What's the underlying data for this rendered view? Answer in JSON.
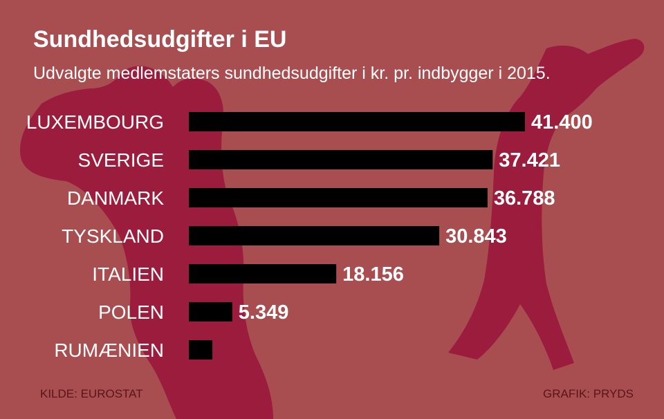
{
  "title": "Sundhedsudgifter i EU",
  "subtitle": "Udvalgte medlemstaters sundhedsudgifter i kr. pr. indbygger i 2015.",
  "source": "KILDE: EUROSTAT",
  "credit": "GRAFIK: PRYDS",
  "colors": {
    "background": "#a84e50",
    "silhouette": "#9b1c3c",
    "bar": "#000000",
    "label": "#ffffff",
    "footer_text": "#5a1418"
  },
  "chart_data": {
    "type": "bar",
    "orientation": "horizontal",
    "title": "Sundhedsudgifter i EU",
    "subtitle": "Udvalgte medlemstaters sundhedsudgifter i kr. pr. indbygger i 2015.",
    "xlabel": "",
    "ylabel": "",
    "xlim": [
      0,
      41400
    ],
    "categories": [
      "LUXEMBOURG",
      "SVERIGE",
      "DANMARK",
      "TYSKLAND",
      "ITALIEN",
      "POLEN",
      "RUMÆNIEN"
    ],
    "values": [
      41400,
      37421,
      36788,
      30843,
      18156,
      5349,
      2900
    ],
    "value_labels": [
      "41.400",
      "37.421",
      "36.788",
      "30.843",
      "18.156",
      "5.349",
      ""
    ]
  }
}
